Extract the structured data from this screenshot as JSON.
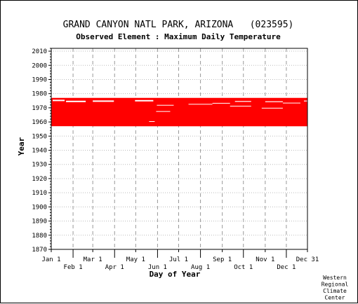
{
  "chart_data": {
    "type": "heatmap",
    "title": "GRAND CANYON NATL PARK, ARIZONA   (023595)",
    "subtitle": "Observed Element : Maximum Daily Temperature",
    "xlabel": "Day of Year",
    "ylabel": "Year",
    "x_ticks_upper": [
      "Jan 1",
      "Mar 1",
      "May 1",
      "Jul 1",
      "Sep 1",
      "Nov 1",
      "Dec 31"
    ],
    "x_ticks_lower": [
      "Feb 1",
      "Apr 1",
      "Jun 1",
      "Aug 1",
      "Oct 1",
      "Dec 1"
    ],
    "x_tick_days": [
      1,
      32,
      60,
      91,
      121,
      152,
      182,
      213,
      244,
      274,
      305,
      335,
      365
    ],
    "xlim": [
      1,
      365
    ],
    "y_ticks": [
      1870,
      1880,
      1890,
      1900,
      1910,
      1920,
      1930,
      1940,
      1950,
      1960,
      1970,
      1980,
      1990,
      2000,
      2010
    ],
    "ylim": [
      1870,
      2012
    ],
    "grid": true,
    "data_color": "#ff0000",
    "data_coverage": {
      "years": [
        1957,
        1976
      ],
      "description_of_pattern": "Data present for nearly every day from about 1957 through 1976"
    },
    "credit": [
      "Western",
      "Regional",
      "Climate",
      "Center"
    ]
  }
}
